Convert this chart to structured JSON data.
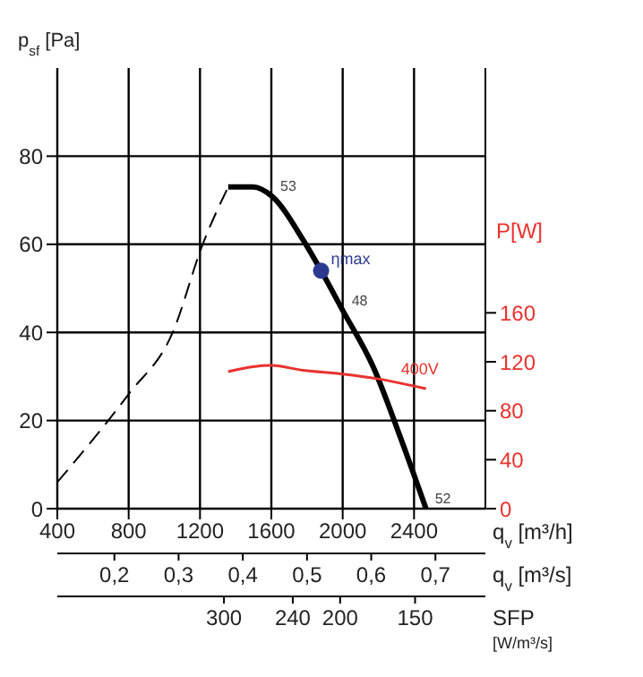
{
  "chart_data": {
    "type": "line",
    "xlabel": "q$_{v}$ [m³/h]",
    "x2label": "q$_{v}$ [m³/s]",
    "ylabel": "p$_{sf}$ [Pa]",
    "y2label": "P[W]",
    "xlim": [
      400,
      2800
    ],
    "xticks": [
      400,
      800,
      1200,
      1600,
      2000,
      2400
    ],
    "x2lim": [
      0.1111,
      0.7778
    ],
    "x2ticks": [
      {
        "value": 0.2,
        "label": "0,2"
      },
      {
        "value": 0.3,
        "label": "0,3"
      },
      {
        "value": 0.4,
        "label": "0,4"
      },
      {
        "value": 0.5,
        "label": "0,5"
      },
      {
        "value": 0.6,
        "label": "0,6"
      },
      {
        "value": 0.7,
        "label": "0,7"
      }
    ],
    "ylim": [
      0,
      100
    ],
    "yticks": [
      0,
      20,
      40,
      60,
      80
    ],
    "y2lim": [
      0,
      360
    ],
    "y2ticks": [
      0,
      40,
      80,
      120,
      160
    ],
    "grid": true,
    "series": [
      {
        "type": "line",
        "line_style": "dashed",
        "color": "#000000",
        "x": [
          400,
          800,
          1047,
          1215,
          1358
        ],
        "values": [
          6,
          26,
          40,
          60,
          73
        ]
      },
      {
        "type": "line",
        "line_style": "solid",
        "color": "#000000",
        "x": [
          1358,
          1498,
          1600,
          1778,
          1879,
          2000,
          2173,
          2316,
          2467
        ],
        "values": [
          73,
          73,
          71,
          61,
          54,
          45,
          32,
          17,
          0
        ]
      },
      {
        "type": "line",
        "name": "400V",
        "axis": "y2",
        "color": "#e8322e",
        "x": [
          1358,
          1498,
          1600,
          1778,
          2000,
          2200,
          2467
        ],
        "values": [
          112,
          116,
          117,
          113,
          110,
          106,
          98
        ]
      },
      {
        "type": "scatter",
        "name": "ηmax",
        "marker": "circle",
        "color": "#2b3990",
        "x": [
          1879
        ],
        "values": [
          54
        ]
      }
    ],
    "annotations": [
      {
        "text": "53",
        "x": 1600,
        "y": 71
      },
      {
        "text": "48",
        "x": 2000,
        "y": 45
      },
      {
        "text": "52",
        "x": 2467,
        "y": 0
      },
      "300",
      "240",
      "200",
      "150",
      "SFP [W/m³/s]"
    ]
  }
}
